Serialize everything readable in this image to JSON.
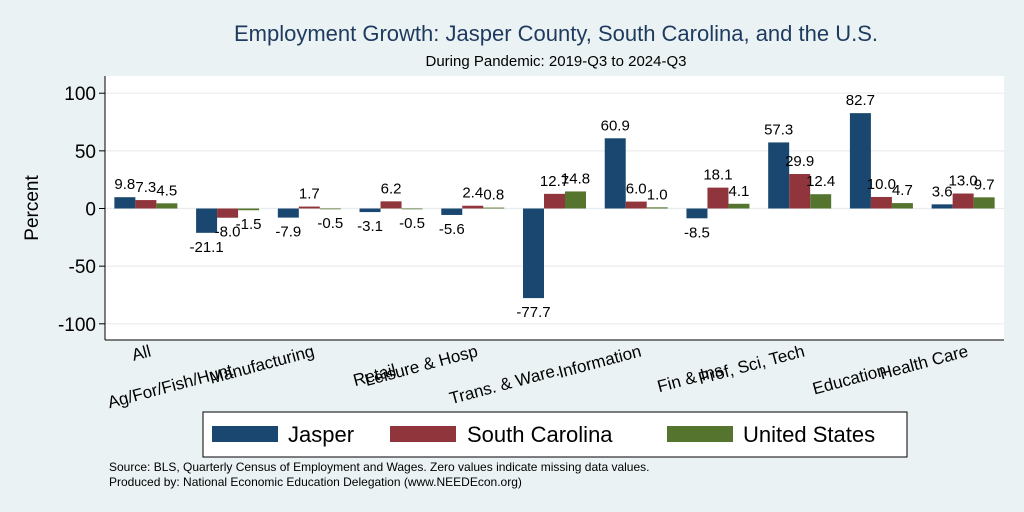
{
  "chart_data": {
    "type": "bar",
    "title": "Employment Growth: Jasper County, South Carolina, and the U.S.",
    "subtitle": "During Pandemic: 2019-Q3 to 2024-Q3",
    "xlabel": "",
    "ylabel": "Percent",
    "ylim": [
      -115,
      115
    ],
    "yticks": [
      -100,
      -50,
      0,
      50,
      100
    ],
    "grid": true,
    "legend_position": "bottom",
    "categories": [
      "All",
      "Ag/For/Fish/Hunt",
      "Manufacturing",
      "Retail",
      "Leisure & Hosp",
      "Trans. & Ware.",
      "Information",
      "Fin & Ins",
      "Prof, Sci, Tech",
      "Education",
      "Health Care"
    ],
    "series": [
      {
        "name": "Jasper",
        "color": "#1a476f",
        "values": [
          9.8,
          -21.1,
          -7.9,
          -3.1,
          -5.6,
          -77.7,
          60.9,
          -8.5,
          57.3,
          82.7,
          3.6
        ],
        "labels": [
          "9.8",
          "-21.1",
          "-7.9",
          "-3.1",
          "-5.6",
          "-77.7",
          "60.9",
          "-8.5",
          "57.3",
          "82.7",
          "3.6"
        ]
      },
      {
        "name": "South Carolina",
        "color": "#90353b",
        "values": [
          7.3,
          -8.0,
          1.7,
          6.2,
          2.4,
          12.7,
          6.0,
          18.1,
          29.9,
          10.0,
          13.0
        ],
        "labels": [
          "7.3",
          "-8.0",
          "1.7",
          "6.2",
          "2.4",
          "12.7",
          "6.0",
          "18.1",
          "29.9",
          "10.0",
          "13.0"
        ]
      },
      {
        "name": "United States",
        "color": "#55752f",
        "values": [
          4.5,
          -1.5,
          -0.5,
          -0.5,
          0.8,
          14.8,
          1.0,
          4.1,
          12.4,
          4.7,
          9.7
        ],
        "labels": [
          "4.5",
          "-1.5",
          "-0.5",
          "-0.5",
          "0.8",
          "14.8",
          "1.0",
          "4.1",
          "12.4",
          "4.7",
          "9.7"
        ]
      }
    ]
  },
  "footnotes": {
    "source": "Source: BLS, Quarterly Census of Employment and Wages. Zero values indicate missing data values.",
    "produced": "Produced by: National Economic Education Delegation (www.NEEDEcon.org)"
  }
}
